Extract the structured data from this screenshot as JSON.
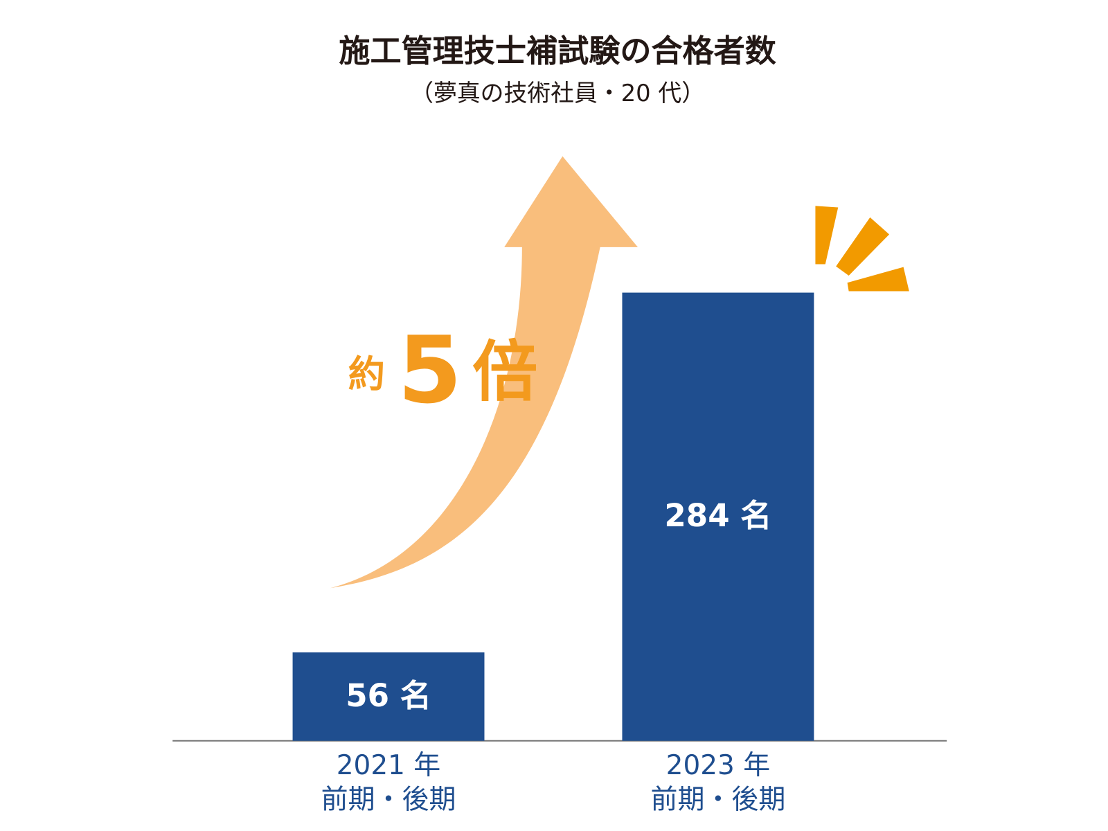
{
  "chart_data": {
    "type": "bar",
    "title": "施工管理技士補試験の合格者数",
    "subtitle": "（夢真の技術社員・20 代）",
    "categories": [
      [
        "2021 年",
        "前期・後期"
      ],
      [
        "2023 年",
        "前期・後期"
      ]
    ],
    "values": [
      56,
      284
    ],
    "value_labels": [
      "56 名",
      "284 名"
    ],
    "color": "#1f4e8f",
    "annotation": [
      "約",
      "5",
      "倍"
    ]
  }
}
